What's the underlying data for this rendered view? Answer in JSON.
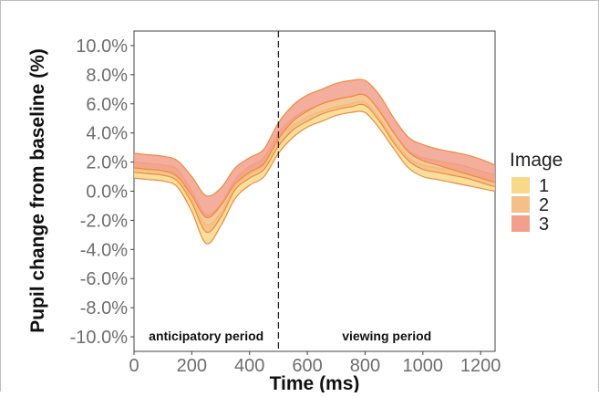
{
  "chart_data": {
    "type": "area",
    "xlabel": "Time (ms)",
    "ylabel": "Pupil change from baseline (%)",
    "xlim": [
      0,
      1250
    ],
    "ylim": [
      -11,
      11
    ],
    "x_ticks": [
      0,
      200,
      400,
      600,
      800,
      1000,
      1200
    ],
    "x_tick_labels": [
      "0",
      "200",
      "400",
      "600",
      "800",
      "1000",
      "1200"
    ],
    "y_ticks": [
      10,
      8,
      6,
      4,
      2,
      0,
      -2,
      -4,
      -6,
      -8,
      -10
    ],
    "y_tick_labels": [
      "10.0%",
      "8.0%",
      "6.0%",
      "4.0%",
      "2.0%",
      "0.0%",
      "-2.0%",
      "-4.0%",
      "-6.0%",
      "-8.0%",
      "-10.0%"
    ],
    "vline_x": 500,
    "annotations": [
      {
        "text": "anticipatory period",
        "x": 250,
        "y": -10
      },
      {
        "text": "viewing period",
        "x": 875,
        "y": -10
      }
    ],
    "legend_title": "Image",
    "legend_position": "right",
    "x": [
      0,
      50,
      100,
      150,
      200,
      250,
      300,
      350,
      400,
      450,
      500,
      550,
      600,
      650,
      700,
      750,
      800,
      850,
      900,
      950,
      1000,
      1050,
      1100,
      1150,
      1200,
      1250
    ],
    "series": [
      {
        "name": "1",
        "color": "#f8d98c",
        "upper": [
          1.6,
          1.5,
          1.4,
          1.1,
          -0.6,
          -2.3,
          -1.5,
          0.3,
          1.2,
          1.8,
          3.7,
          4.5,
          5.1,
          5.5,
          5.8,
          6.0,
          6.1,
          5.0,
          3.5,
          2.3,
          1.8,
          1.6,
          1.5,
          1.3,
          1.0,
          0.7
        ],
        "lower": [
          0.9,
          0.8,
          0.7,
          0.3,
          -1.4,
          -3.6,
          -2.4,
          -0.5,
          0.4,
          1.0,
          2.6,
          3.7,
          4.4,
          4.8,
          5.2,
          5.4,
          5.4,
          4.3,
          2.9,
          1.6,
          1.0,
          0.8,
          0.6,
          0.4,
          0.2,
          0.0
        ]
      },
      {
        "name": "2",
        "color": "#f5c087",
        "upper": [
          2.0,
          1.9,
          1.8,
          1.5,
          0.0,
          -1.6,
          -0.9,
          0.8,
          1.7,
          2.3,
          4.0,
          5.0,
          5.6,
          6.0,
          6.3,
          6.5,
          6.6,
          5.5,
          4.0,
          2.8,
          2.3,
          2.1,
          1.9,
          1.7,
          1.4,
          1.1
        ],
        "lower": [
          1.3,
          1.2,
          1.1,
          0.7,
          -0.8,
          -2.8,
          -1.8,
          0.1,
          0.9,
          1.5,
          3.1,
          4.2,
          4.8,
          5.3,
          5.6,
          5.8,
          5.9,
          4.8,
          3.3,
          2.1,
          1.5,
          1.3,
          1.1,
          0.9,
          0.6,
          0.3
        ]
      },
      {
        "name": "3",
        "color": "#f2a08c",
        "upper": [
          2.6,
          2.5,
          2.4,
          2.1,
          1.0,
          -0.3,
          0.2,
          1.6,
          2.3,
          2.9,
          4.7,
          5.9,
          6.6,
          7.0,
          7.4,
          7.6,
          7.6,
          6.6,
          5.0,
          3.7,
          3.2,
          2.9,
          2.7,
          2.5,
          2.2,
          1.8
        ],
        "lower": [
          1.6,
          1.5,
          1.4,
          1.0,
          -0.3,
          -1.8,
          -1.0,
          0.5,
          1.3,
          1.9,
          3.6,
          4.8,
          5.5,
          6.0,
          6.3,
          6.5,
          6.6,
          5.5,
          4.0,
          2.7,
          2.1,
          1.8,
          1.5,
          1.2,
          0.9,
          0.6
        ]
      }
    ]
  }
}
